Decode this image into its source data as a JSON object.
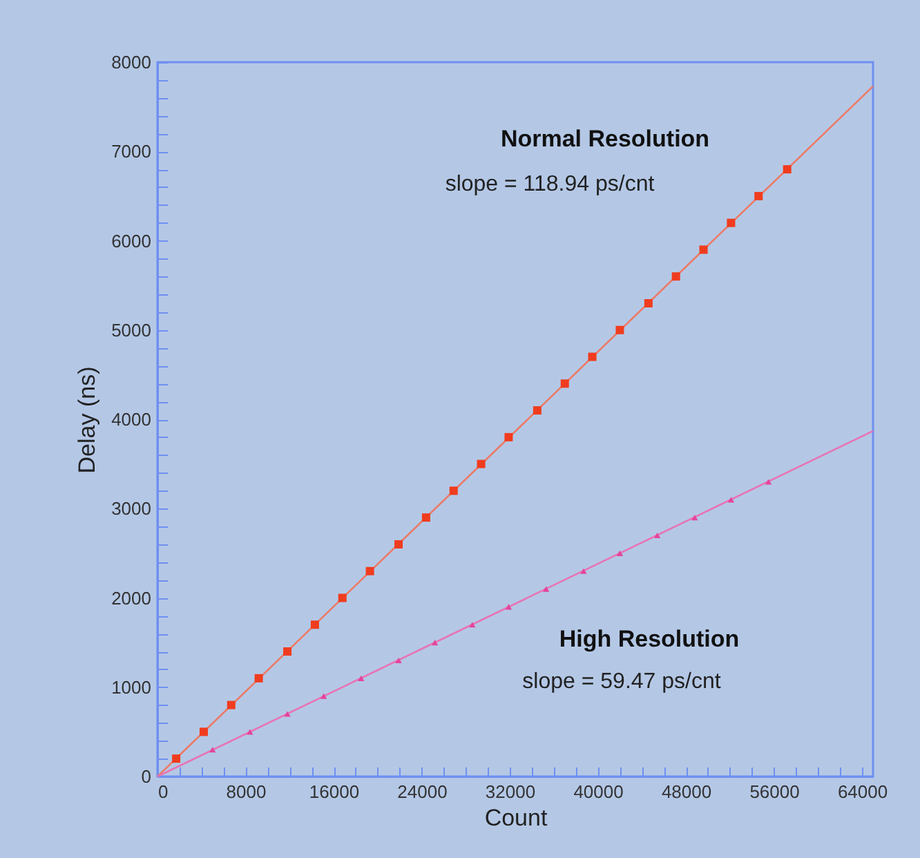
{
  "chart_data": {
    "type": "scatter",
    "xlabel": "Count",
    "ylabel": "Delay (ns)",
    "xlim": [
      0,
      65000
    ],
    "ylim": [
      0,
      8000
    ],
    "xticks": [
      0,
      {
        "value": 2000,
        "label": null
      },
      {
        "value": 4000,
        "label": null
      },
      {
        "value": 6000,
        "label": null
      },
      8000,
      {
        "value": 10000,
        "label": null
      },
      {
        "value": 12000,
        "label": null
      },
      {
        "value": 14000,
        "label": null
      },
      16000,
      {
        "value": 18000,
        "label": null
      },
      {
        "value": 20000,
        "label": null
      },
      {
        "value": 22000,
        "label": null
      },
      24000,
      {
        "value": 26000,
        "label": null
      },
      {
        "value": 28000,
        "label": null
      },
      {
        "value": 30000,
        "label": null
      },
      32000,
      {
        "value": 34000,
        "label": null
      },
      {
        "value": 36000,
        "label": null
      },
      {
        "value": 38000,
        "label": null
      },
      40000,
      {
        "value": 42000,
        "label": null
      },
      {
        "value": 44000,
        "label": null
      },
      {
        "value": 46000,
        "label": null
      },
      48000,
      {
        "value": 50000,
        "label": null
      },
      {
        "value": 52000,
        "label": null
      },
      {
        "value": 54000,
        "label": null
      },
      56000,
      {
        "value": 58000,
        "label": null
      },
      {
        "value": 60000,
        "label": null
      },
      {
        "value": 62000,
        "label": null
      },
      64000
    ],
    "yticks": [
      0,
      {
        "value": 200,
        "label": null
      },
      {
        "value": 400,
        "label": null
      },
      {
        "value": 600,
        "label": null
      },
      {
        "value": 800,
        "label": null
      },
      1000,
      {
        "value": 1200,
        "label": null
      },
      {
        "value": 1400,
        "label": null
      },
      {
        "value": 1600,
        "label": null
      },
      {
        "value": 1800,
        "label": null
      },
      2000,
      {
        "value": 2200,
        "label": null
      },
      {
        "value": 2400,
        "label": null
      },
      {
        "value": 2600,
        "label": null
      },
      {
        "value": 2800,
        "label": null
      },
      3000,
      {
        "value": 3200,
        "label": null
      },
      {
        "value": 3400,
        "label": null
      },
      {
        "value": 3600,
        "label": null
      },
      {
        "value": 3800,
        "label": null
      },
      4000,
      {
        "value": 4200,
        "label": null
      },
      {
        "value": 4400,
        "label": null
      },
      {
        "value": 4600,
        "label": null
      },
      {
        "value": 4800,
        "label": null
      },
      5000,
      {
        "value": 5200,
        "label": null
      },
      {
        "value": 5400,
        "label": null
      },
      {
        "value": 5600,
        "label": null
      },
      {
        "value": 5800,
        "label": null
      },
      6000,
      {
        "value": 6200,
        "label": null
      },
      {
        "value": 6400,
        "label": null
      },
      {
        "value": 6600,
        "label": null
      },
      {
        "value": 6800,
        "label": null
      },
      7000,
      {
        "value": 7200,
        "label": null
      },
      {
        "value": 7400,
        "label": null
      },
      {
        "value": 7600,
        "label": null
      },
      {
        "value": 7800,
        "label": null
      },
      8000
    ],
    "series": [
      {
        "type": "line",
        "color": "#ec7a66",
        "x": [
          0,
          65000
        ],
        "values": [
          0,
          7730
        ]
      },
      {
        "type": "line",
        "color": "#e873b4",
        "x": [
          0,
          65000
        ],
        "values": [
          0,
          3870
        ]
      },
      {
        "name": "Normal Resolution",
        "type": "scatter",
        "marker": "square",
        "color": "#f03c1e",
        "x": [
          1700,
          4200,
          6700,
          9200,
          11800,
          14300,
          16800,
          19300,
          21900,
          24400,
          26900,
          29400,
          31900,
          34500,
          37000,
          39500,
          42000,
          44600,
          47100,
          49600,
          52100,
          54600,
          57200
        ],
        "values": [
          200,
          500,
          800,
          1100,
          1400,
          1700,
          2000,
          2300,
          2600,
          2900,
          3200,
          3500,
          3800,
          4100,
          4400,
          4700,
          5000,
          5300,
          5600,
          5900,
          6200,
          6500,
          6800
        ]
      },
      {
        "name": "High Resolution",
        "type": "scatter",
        "marker": "triangle",
        "color": "#e4449c",
        "x": [
          5000,
          8400,
          11800,
          15100,
          18500,
          21900,
          25200,
          28600,
          31900,
          35300,
          38700,
          42000,
          45400,
          48800,
          52100,
          55500
        ],
        "values": [
          300,
          500,
          700,
          900,
          1100,
          1300,
          1500,
          1700,
          1900,
          2100,
          2300,
          2500,
          2700,
          2900,
          3100,
          3300
        ]
      }
    ],
    "annotations": [
      "slope = 118.94 ps/cnt",
      "slope = 59.47 ps/cnt"
    ]
  }
}
